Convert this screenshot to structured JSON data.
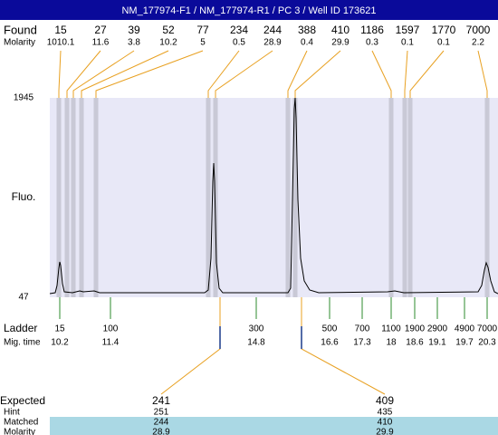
{
  "title": "NM_177974-F1 / NM_177974-R1 / PC 3 / Well ID 173621",
  "found": {
    "label": "Found",
    "values": [
      15,
      27,
      39,
      52,
      77,
      234,
      244,
      388,
      410,
      1186,
      1597,
      1770,
      7000
    ]
  },
  "molarity": {
    "label": "Molarity",
    "values": [
      1010.1,
      11.6,
      3.8,
      10.2,
      5,
      0.5,
      28.9,
      0.4,
      29.9,
      0.3,
      0.1,
      0.1,
      2.2
    ]
  },
  "y_axis": {
    "label": "Fluo.",
    "max": 1945,
    "min": 47
  },
  "ladder": {
    "label": "Ladder",
    "sizes": [
      15,
      100,
      300,
      500,
      700,
      1100,
      1900,
      2900,
      4900,
      7000
    ]
  },
  "mig_time": {
    "label": "Mig. time",
    "values": [
      10.2,
      11.4,
      14.8,
      16.6,
      17.3,
      18,
      18.6,
      19.1,
      19.7,
      20.3
    ]
  },
  "results": {
    "rows": [
      {
        "label": "Expected",
        "values": [
          241,
          409
        ]
      },
      {
        "label": "Hint",
        "values": [
          251,
          435
        ]
      },
      {
        "label": "Matched",
        "values": [
          244,
          410
        ]
      },
      {
        "label": "Molarity",
        "values": [
          28.9,
          29.9
        ]
      }
    ]
  }
}
